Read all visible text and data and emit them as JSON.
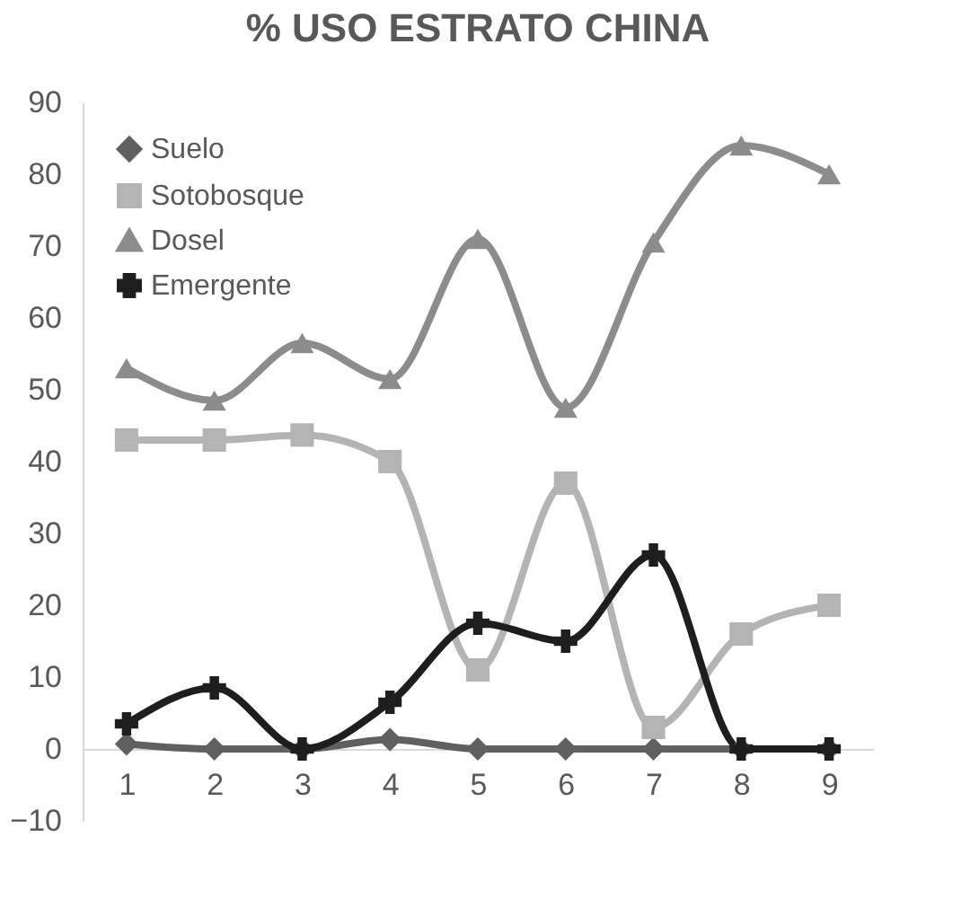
{
  "chart_data": {
    "type": "line",
    "title": "% USO ESTRATO CHINA",
    "categories": [
      "1",
      "2",
      "3",
      "4",
      "5",
      "6",
      "7",
      "8",
      "9"
    ],
    "series": [
      {
        "name": "Suelo",
        "color": "#606060",
        "marker": "diamond",
        "values": [
          0.7,
          0,
          0,
          1.3,
          0,
          0,
          0,
          0,
          0
        ]
      },
      {
        "name": "Sotobosque",
        "color": "#b4b4b4",
        "marker": "square",
        "values": [
          43,
          43,
          43.7,
          40,
          11,
          37,
          3,
          16,
          20
        ]
      },
      {
        "name": "Dosel",
        "color": "#8c8c8c",
        "marker": "triangle",
        "values": [
          53,
          48.5,
          56.5,
          51.5,
          71,
          47.5,
          70.5,
          84,
          80
        ]
      },
      {
        "name": "Emergente",
        "color": "#1e1e1e",
        "marker": "cross",
        "values": [
          3.5,
          8.5,
          0,
          6.5,
          17.5,
          15,
          27,
          0,
          0
        ]
      }
    ],
    "ylim": [
      -10,
      90
    ],
    "yticks": [
      -10,
      0,
      10,
      20,
      30,
      40,
      50,
      60,
      70,
      80,
      90
    ],
    "grid": false,
    "legend": "top left",
    "line_style": "solid"
  }
}
